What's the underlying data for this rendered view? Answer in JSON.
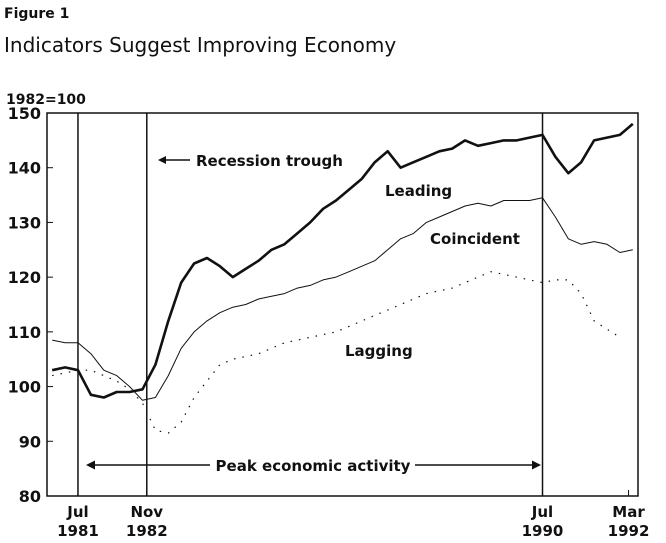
{
  "chart_data": {
    "type": "line",
    "title": "Figure 1",
    "subtitle": "Indicators Suggest Improving Economy",
    "y_label": "1982=100",
    "x": [
      1981.0,
      1981.25,
      1981.5,
      1981.75,
      1982.0,
      1982.25,
      1982.5,
      1982.75,
      1983.0,
      1983.25,
      1983.5,
      1983.75,
      1984.0,
      1984.25,
      1984.5,
      1984.75,
      1985.0,
      1985.25,
      1985.5,
      1985.75,
      1986.0,
      1986.25,
      1986.5,
      1986.75,
      1987.0,
      1987.25,
      1987.5,
      1987.75,
      1988.0,
      1988.25,
      1988.5,
      1988.75,
      1989.0,
      1989.25,
      1989.5,
      1989.75,
      1990.0,
      1990.25,
      1990.5,
      1990.75,
      1991.0,
      1991.25,
      1991.5,
      1991.75,
      1992.0,
      1992.25
    ],
    "series": [
      {
        "name": "Leading",
        "color": "#111111",
        "style": "thick",
        "values": [
          103,
          103.5,
          103,
          98.5,
          98,
          99,
          99,
          99.5,
          104,
          112,
          119,
          122.5,
          123.5,
          122,
          120,
          121.5,
          123,
          125,
          126,
          128,
          130,
          132.5,
          134,
          136,
          138,
          141,
          143,
          140,
          141,
          142,
          143,
          143.5,
          145,
          144,
          144.5,
          145,
          145,
          145.5,
          146,
          142,
          139,
          141,
          145,
          145.5,
          146,
          148
        ]
      },
      {
        "name": "Coincident",
        "color": "#111111",
        "style": "thin",
        "values": [
          108.5,
          108,
          108,
          106,
          103,
          102,
          100,
          97.5,
          98,
          102,
          107,
          110,
          112,
          113.5,
          114.5,
          115,
          116,
          116.5,
          117,
          118,
          118.5,
          119.5,
          120,
          121,
          122,
          123,
          125,
          127,
          128,
          130,
          131,
          132,
          133,
          133.5,
          133,
          134,
          134,
          134,
          134.5,
          131,
          127,
          126,
          126.5,
          126,
          124.5,
          125
        ]
      },
      {
        "name": "Lagging",
        "color": "#111111",
        "style": "dotted",
        "values": [
          102,
          102.5,
          103,
          103,
          102,
          101,
          99.5,
          97,
          92,
          91.5,
          93.5,
          98,
          101,
          104,
          105,
          105.5,
          106,
          107,
          108,
          108.5,
          109,
          109.5,
          110,
          111,
          112,
          113,
          114,
          115,
          116,
          117,
          117.5,
          118,
          119,
          120,
          121,
          120.5,
          120,
          119.5,
          119,
          119.5,
          119.5,
          117,
          112,
          110.5,
          109,
          null
        ]
      }
    ],
    "xlim": [
      1980.9,
      1992.35
    ],
    "xticks": [
      {
        "value": 1981.5,
        "label": "Jul\n1981"
      },
      {
        "value": 1982.8333,
        "label": "Nov\n1982"
      },
      {
        "value": 1990.5,
        "label": "Jul\n1990"
      },
      {
        "value": 1992.1667,
        "label": "Mar\n1992"
      }
    ],
    "vlines": [
      1981.5,
      1982.8333,
      1990.5
    ],
    "ylim": [
      80,
      150
    ],
    "yticks": [
      80,
      90,
      100,
      110,
      120,
      130,
      140,
      150
    ],
    "annotations": [
      "Recession trough",
      "Peak economic activity"
    ]
  }
}
